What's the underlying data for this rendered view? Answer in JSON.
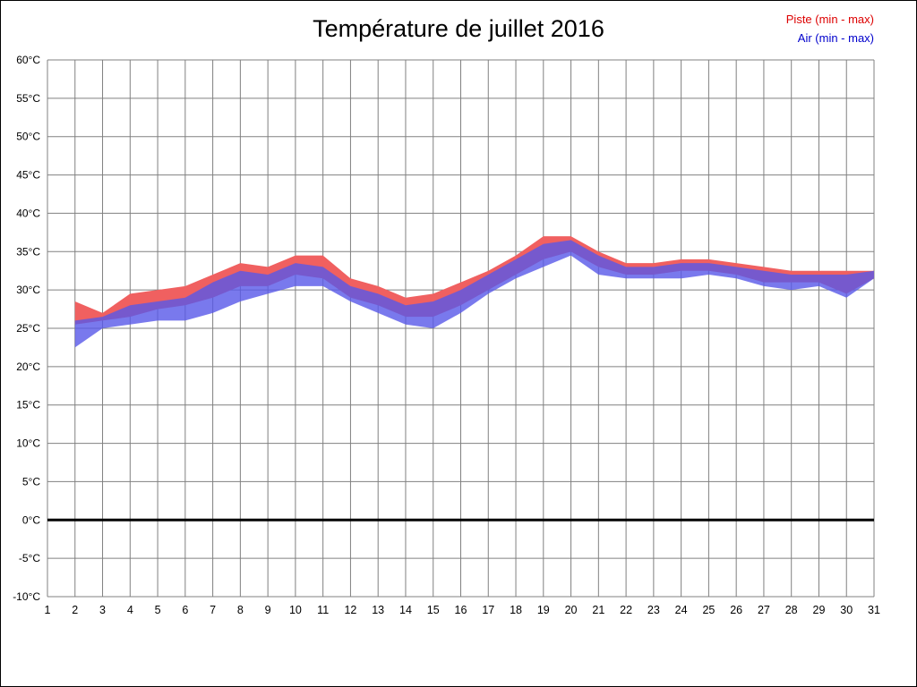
{
  "page": {
    "title": "Température de juillet 2016"
  },
  "legend": {
    "items": [
      {
        "label": "Piste (min - max)",
        "color": "#dd0000"
      },
      {
        "label": "Air (min - max)",
        "color": "#0000cc"
      }
    ]
  },
  "chart_data": {
    "type": "area",
    "title": "Température de juillet 2016",
    "xlabel": "",
    "ylabel": "",
    "xlim": [
      1,
      31
    ],
    "ylim": [
      -10,
      60
    ],
    "grid": true,
    "grid_color": "#808080",
    "zero_line": {
      "value": 0,
      "color": "#000000",
      "width": 3
    },
    "legend_position": "top-right",
    "x_ticks": [
      {
        "value": 1,
        "label": "1"
      },
      {
        "value": 2,
        "label": "2"
      },
      {
        "value": 3,
        "label": "3"
      },
      {
        "value": 4,
        "label": "4"
      },
      {
        "value": 5,
        "label": "5"
      },
      {
        "value": 6,
        "label": "6"
      },
      {
        "value": 7,
        "label": "7"
      },
      {
        "value": 8,
        "label": "8"
      },
      {
        "value": 9,
        "label": "9"
      },
      {
        "value": 10,
        "label": "10"
      },
      {
        "value": 11,
        "label": "11"
      },
      {
        "value": 12,
        "label": "12"
      },
      {
        "value": 13,
        "label": "13"
      },
      {
        "value": 14,
        "label": "14"
      },
      {
        "value": 15,
        "label": "15"
      },
      {
        "value": 16,
        "label": "16"
      },
      {
        "value": 17,
        "label": "17"
      },
      {
        "value": 18,
        "label": "18"
      },
      {
        "value": 19,
        "label": "19"
      },
      {
        "value": 20,
        "label": "20"
      },
      {
        "value": 21,
        "label": "21"
      },
      {
        "value": 22,
        "label": "22"
      },
      {
        "value": 23,
        "label": "23"
      },
      {
        "value": 24,
        "label": "24"
      },
      {
        "value": 25,
        "label": "25"
      },
      {
        "value": 26,
        "label": "26"
      },
      {
        "value": 27,
        "label": "27"
      },
      {
        "value": 28,
        "label": "28"
      },
      {
        "value": 29,
        "label": "29"
      },
      {
        "value": 30,
        "label": "30"
      },
      {
        "value": 31,
        "label": "31"
      }
    ],
    "y_ticks": [
      {
        "value": 60,
        "label": "60°C"
      },
      {
        "value": 55,
        "label": "55°C"
      },
      {
        "value": 50,
        "label": "50°C"
      },
      {
        "value": 45,
        "label": "45°C"
      },
      {
        "value": 40,
        "label": "40°C"
      },
      {
        "value": 35,
        "label": "35°C"
      },
      {
        "value": 30,
        "label": "30°C"
      },
      {
        "value": 25,
        "label": "25°C"
      },
      {
        "value": 20,
        "label": "20°C"
      },
      {
        "value": 15,
        "label": "15°C"
      },
      {
        "value": 10,
        "label": "10°C"
      },
      {
        "value": 5,
        "label": "5°C"
      },
      {
        "value": 0,
        "label": "0°C"
      },
      {
        "value": -5,
        "label": "-5°C"
      },
      {
        "value": -10,
        "label": "-10°C"
      }
    ],
    "x": [
      2,
      3,
      4,
      5,
      6,
      7,
      8,
      9,
      10,
      11,
      12,
      13,
      14,
      15,
      16,
      17,
      18,
      19,
      20,
      21,
      22,
      23,
      24,
      25,
      26,
      27,
      28,
      29,
      30,
      31
    ],
    "series": [
      {
        "name": "Piste (min - max)",
        "fill": "#f06060",
        "opacity": 1,
        "max": [
          28.5,
          27.0,
          29.5,
          30.0,
          30.5,
          32.0,
          33.5,
          33.0,
          34.5,
          34.5,
          31.5,
          30.5,
          29.0,
          29.5,
          31.0,
          32.5,
          34.5,
          37.0,
          37.0,
          35.0,
          33.5,
          33.5,
          34.0,
          34.0,
          33.5,
          33.0,
          32.5,
          32.5,
          32.5,
          32.5
        ],
        "min": [
          25.5,
          26.0,
          26.5,
          27.5,
          28.0,
          29.0,
          30.5,
          30.5,
          32.0,
          31.5,
          29.0,
          28.0,
          26.5,
          26.5,
          28.0,
          30.0,
          32.0,
          34.0,
          35.0,
          33.0,
          32.0,
          32.0,
          32.5,
          32.5,
          32.0,
          31.0,
          31.0,
          31.0,
          29.5,
          31.5
        ]
      },
      {
        "name": "Air (min - max)",
        "fill": "#5858e8",
        "opacity": 0.8,
        "max": [
          26.0,
          26.5,
          28.0,
          28.5,
          29.0,
          31.0,
          32.5,
          32.0,
          33.5,
          33.0,
          30.5,
          29.5,
          28.0,
          28.5,
          30.0,
          32.0,
          34.0,
          36.0,
          36.5,
          34.5,
          33.0,
          33.0,
          33.5,
          33.5,
          33.0,
          32.5,
          32.0,
          32.0,
          32.0,
          32.5
        ],
        "min": [
          22.5,
          25.0,
          25.5,
          26.0,
          26.0,
          27.0,
          28.5,
          29.5,
          30.5,
          30.5,
          28.5,
          27.0,
          25.5,
          25.0,
          27.0,
          29.5,
          31.5,
          33.0,
          34.5,
          32.0,
          31.5,
          31.5,
          31.5,
          32.0,
          31.5,
          30.5,
          30.0,
          30.5,
          29.0,
          31.5
        ]
      }
    ]
  }
}
